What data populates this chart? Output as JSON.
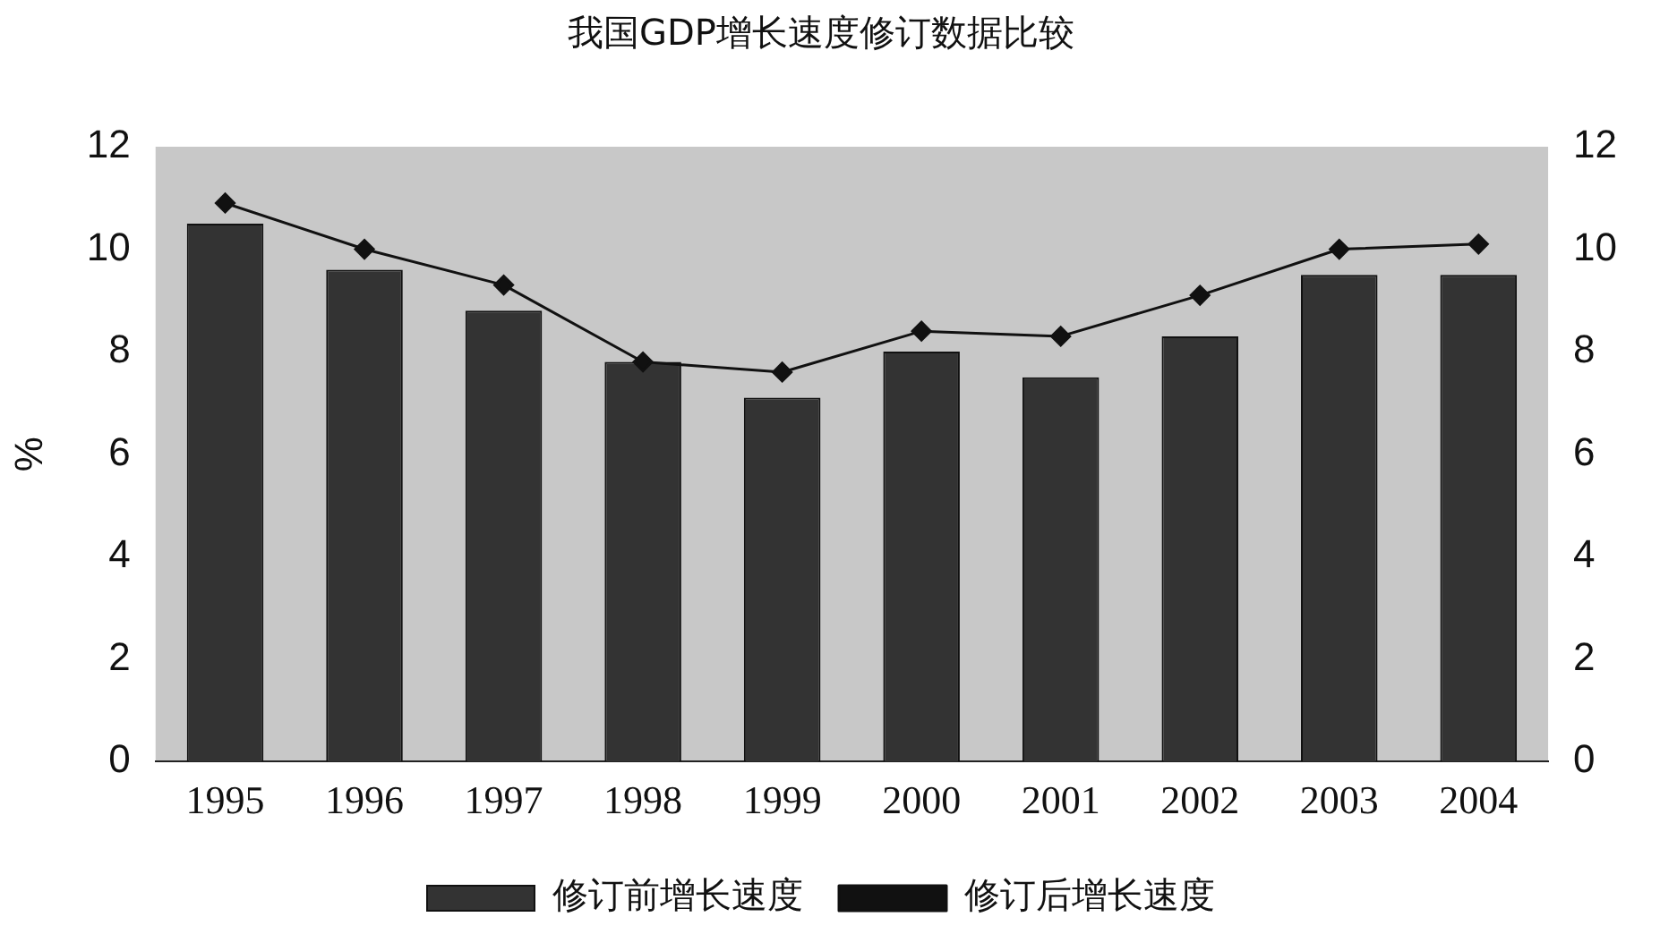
{
  "chart_data": {
    "type": "bar",
    "title": "我国GDP增长速度修订数据比较",
    "ylabel": "%",
    "categories": [
      "1995",
      "1996",
      "1997",
      "1998",
      "1999",
      "2000",
      "2001",
      "2002",
      "2003",
      "2004"
    ],
    "series": [
      {
        "name": "修订前增长速度",
        "color": "#333333",
        "values": [
          10.5,
          9.6,
          8.8,
          7.8,
          7.1,
          8.0,
          7.5,
          8.3,
          9.5,
          9.5
        ]
      },
      {
        "name": "修订后增长速度",
        "type": "line",
        "color": "#111111",
        "marker": "diamond",
        "values": [
          10.9,
          10.0,
          9.3,
          7.8,
          7.6,
          8.4,
          8.3,
          9.1,
          10.0,
          10.1
        ]
      }
    ],
    "ylim": [
      0,
      12
    ],
    "yticks": [
      0,
      2,
      4,
      6,
      8,
      10,
      12
    ],
    "y2lim": [
      0,
      12
    ],
    "y2ticks": [
      0,
      2,
      4,
      6,
      8,
      10,
      12
    ],
    "legend": "bottom"
  }
}
